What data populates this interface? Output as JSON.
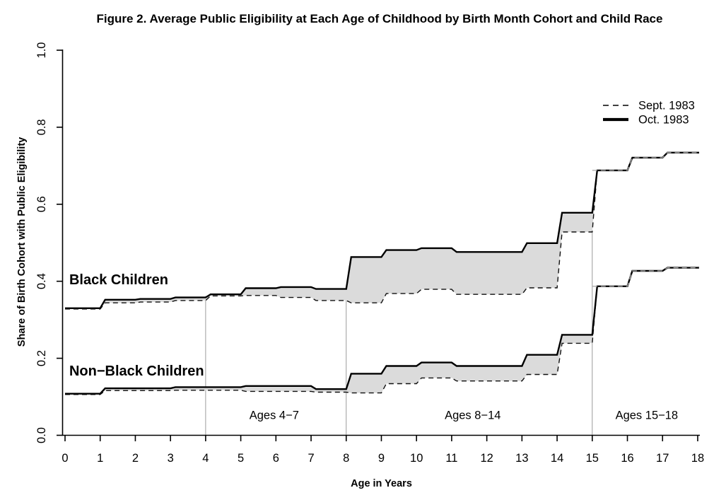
{
  "chart_data": {
    "type": "line",
    "title": "Figure 2. Average Public Eligibility at Each Age of Childhood by Birth Month Cohort and Child Race",
    "xlabel": "Age in Years",
    "ylabel": "Share of Birth Cohort with Public Eligibility",
    "xlim": [
      0,
      18
    ],
    "ylim": [
      0.0,
      1.0
    ],
    "x_ticks": [
      "0",
      "1",
      "2",
      "3",
      "4",
      "5",
      "6",
      "7",
      "8",
      "9",
      "10",
      "11",
      "12",
      "13",
      "14",
      "15",
      "16",
      "17",
      "18"
    ],
    "y_ticks": [
      {
        "v": 0.0,
        "label": "0.0"
      },
      {
        "v": 0.2,
        "label": "0.2"
      },
      {
        "v": 0.4,
        "label": "0.4"
      },
      {
        "v": 0.6,
        "label": "0.6"
      },
      {
        "v": 0.8,
        "label": "0.8"
      },
      {
        "v": 1.0,
        "label": "1.0"
      }
    ],
    "legend": {
      "position": "top-right",
      "entries": [
        {
          "label": "Sept. 1983",
          "line_style": "dashed",
          "line_width": "thin"
        },
        {
          "label": "Oct. 1983",
          "line_style": "solid",
          "line_width": "thick"
        }
      ]
    },
    "series": [
      {
        "name": "Black Children - Oct. 1983 cohort",
        "group": "Black Children",
        "legend": "Oct. 1983",
        "style": "solid",
        "step_points": [
          [
            0,
            0.33
          ],
          [
            1,
            0.352
          ],
          [
            2,
            0.354
          ],
          [
            3,
            0.358
          ],
          [
            4,
            0.366
          ],
          [
            5,
            0.382
          ],
          [
            6,
            0.385
          ],
          [
            7,
            0.38
          ],
          [
            8,
            0.463
          ],
          [
            9,
            0.481
          ],
          [
            10,
            0.486
          ],
          [
            11,
            0.476
          ],
          [
            13,
            0.499
          ],
          [
            14,
            0.578
          ],
          [
            15,
            0.688
          ],
          [
            16,
            0.721
          ],
          [
            17,
            0.734
          ],
          [
            18,
            0.734
          ]
        ]
      },
      {
        "name": "Black Children - Sept. 1983 cohort",
        "group": "Black Children",
        "legend": "Sept. 1983",
        "style": "dashed",
        "step_points": [
          [
            0,
            0.328
          ],
          [
            1,
            0.344
          ],
          [
            2,
            0.346
          ],
          [
            3,
            0.35
          ],
          [
            4,
            0.362
          ],
          [
            5,
            0.363
          ],
          [
            6,
            0.358
          ],
          [
            7,
            0.35
          ],
          [
            8,
            0.344
          ],
          [
            9,
            0.368
          ],
          [
            10,
            0.379
          ],
          [
            11,
            0.366
          ],
          [
            13,
            0.383
          ],
          [
            14,
            0.528
          ],
          [
            15,
            0.688
          ],
          [
            16,
            0.721
          ],
          [
            17,
            0.734
          ],
          [
            18,
            0.734
          ]
        ]
      },
      {
        "name": "Non-Black Children - Oct. 1983 cohort",
        "group": "Non-Black Children",
        "legend": "Oct. 1983",
        "style": "solid",
        "step_points": [
          [
            0,
            0.108
          ],
          [
            1,
            0.122
          ],
          [
            3,
            0.125
          ],
          [
            5,
            0.128
          ],
          [
            7,
            0.12
          ],
          [
            8,
            0.16
          ],
          [
            9,
            0.18
          ],
          [
            10,
            0.189
          ],
          [
            11,
            0.18
          ],
          [
            13,
            0.209
          ],
          [
            14,
            0.261
          ],
          [
            15,
            0.387
          ],
          [
            16,
            0.427
          ],
          [
            17,
            0.435
          ],
          [
            18,
            0.435
          ]
        ]
      },
      {
        "name": "Non-Black Children - Sept. 1983 cohort",
        "group": "Non-Black Children",
        "legend": "Sept. 1983",
        "style": "dashed",
        "step_points": [
          [
            0,
            0.106
          ],
          [
            1,
            0.116
          ],
          [
            3,
            0.117
          ],
          [
            5,
            0.114
          ],
          [
            7,
            0.112
          ],
          [
            8,
            0.11
          ],
          [
            9,
            0.134
          ],
          [
            10,
            0.149
          ],
          [
            11,
            0.141
          ],
          [
            13,
            0.158
          ],
          [
            14,
            0.239
          ],
          [
            15,
            0.387
          ],
          [
            16,
            0.427
          ],
          [
            17,
            0.435
          ],
          [
            18,
            0.435
          ]
        ]
      }
    ],
    "shading": "gray band fills the gap between the Oct. 1983 (solid) and Sept. 1983 (dashed) lines for each race group",
    "reference_lines": [
      {
        "age": 4,
        "extends_to_share": 0.362
      },
      {
        "age": 8,
        "extends_to_share": 0.35
      },
      {
        "age": 15,
        "extends_to_share": 0.528
      }
    ],
    "annotations": {
      "group_labels": [
        {
          "text": "Black Children",
          "age": 0.12,
          "share": 0.392
        },
        {
          "text": "Non−Black Children",
          "age": 0.12,
          "share": 0.155
        }
      ],
      "age_band_labels": [
        {
          "text": "Ages 4−7",
          "center_age": 5.95,
          "share": 0.042
        },
        {
          "text": "Ages 8−14",
          "center_age": 11.6,
          "share": 0.042
        },
        {
          "text": "Ages 15−18",
          "center_age": 16.55,
          "share": 0.042
        }
      ]
    },
    "colors": {
      "line": "#000000",
      "gap_shading": "#dbdbdb",
      "reference_line": "#9b9b9b",
      "coincident_dash_overlay": "#aaaaaa",
      "background": "#ffffff"
    }
  }
}
